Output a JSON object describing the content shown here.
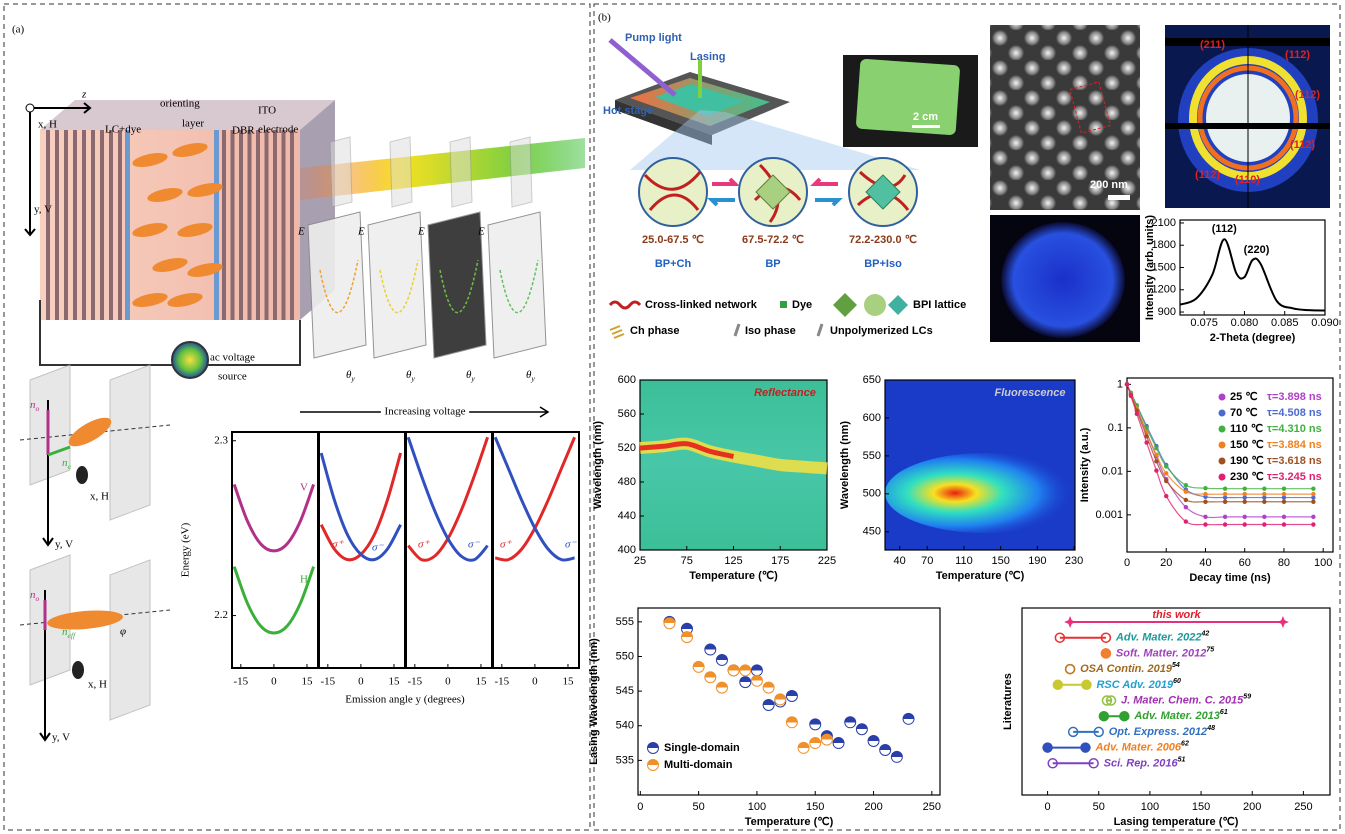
{
  "panel_labels": [
    "(a)",
    "(b)"
  ],
  "device": {
    "z": "z",
    "x": "x, H",
    "y": "y, V",
    "lc": "LC+dye",
    "orienting": [
      "orienting",
      "layer"
    ],
    "dbr": "DBR",
    "ito": [
      "ITO",
      "electrode"
    ],
    "source": [
      "ac voltage",
      "source"
    ],
    "field": "E",
    "angle": "θ",
    "angle_sub": "y"
  },
  "indicatrix": {
    "n": "n",
    "o": "o",
    "e": "e",
    "eff": "eff",
    "phi": "φ",
    "x": "x, H",
    "y": "y, V"
  },
  "schematic": {
    "pump": "Pump light",
    "lasing": "Lasing",
    "stage": "Hot stage",
    "scale_photo": "2 cm",
    "scale_sem": "200 nm",
    "phases": [
      {
        "range": "25.0-67.5 ℃",
        "name": "BP+Ch"
      },
      {
        "range": "67.5-72.2 ℃",
        "name": "BP"
      },
      {
        "range": "72.2-230.0 ℃",
        "name": "BP+Iso"
      }
    ],
    "legend": [
      "Cross-linked network",
      "Dye",
      "BPI lattice",
      "Ch phase",
      "Iso phase",
      "Unpolymerized LCs"
    ],
    "diffraction_labels": [
      "(211)",
      "(112)",
      "(112)",
      "(112)",
      "(112)",
      "(110)"
    ]
  },
  "chart_data": [
    {
      "type": "line",
      "title": "Increasing voltage",
      "xlabel": "Emission angle y (degrees)",
      "ylabel": "Energy (eV)",
      "x": [
        -18,
        -12,
        -6,
        0,
        6,
        12,
        18
      ],
      "xlim": [
        -19,
        20
      ],
      "xticks": [
        -15,
        0,
        15
      ],
      "ylim": [
        2.17,
        2.305
      ],
      "yticks": [
        2.2,
        2.3
      ],
      "panels": [
        {
          "series": [
            {
              "name": "V",
              "color": "#b0308a",
              "values": [
                2.275,
                2.254,
                2.241,
                2.237,
                2.241,
                2.254,
                2.275
              ]
            },
            {
              "name": "H",
              "color": "#3ab03a",
              "values": [
                2.228,
                2.207,
                2.194,
                2.19,
                2.194,
                2.207,
                2.228
              ]
            }
          ]
        },
        {
          "series": [
            {
              "name": "σ⁺",
              "color": "#e02828",
              "values": [
                2.252,
                2.238,
                2.232,
                2.235,
                2.246,
                2.266,
                2.293
              ]
            },
            {
              "name": "σ⁻",
              "color": "#3050c0",
              "values": [
                2.293,
                2.266,
                2.246,
                2.235,
                2.232,
                2.238,
                2.252
              ]
            }
          ]
        },
        {
          "series": [
            {
              "name": "σ⁺",
              "color": "#e02828",
              "values": [
                2.24,
                2.232,
                2.234,
                2.244,
                2.26,
                2.28,
                2.302
              ]
            },
            {
              "name": "σ⁻",
              "color": "#3050c0",
              "values": [
                2.302,
                2.28,
                2.26,
                2.244,
                2.234,
                2.232,
                2.24
              ]
            }
          ]
        },
        {
          "series": [
            {
              "name": "σ⁺",
              "color": "#e02828",
              "values": [
                2.233,
                2.232,
                2.238,
                2.25,
                2.266,
                2.284,
                2.302
              ]
            },
            {
              "name": "σ⁻",
              "color": "#3050c0",
              "values": [
                2.302,
                2.284,
                2.266,
                2.25,
                2.238,
                2.232,
                2.233
              ]
            }
          ]
        }
      ]
    },
    {
      "type": "line",
      "xlabel": "2-Theta (degree)",
      "ylabel": "Intensity (arb. units)",
      "annotations": [
        "(112)",
        "(220)"
      ],
      "x": [
        0.072,
        0.074,
        0.076,
        0.0775,
        0.079,
        0.08,
        0.081,
        0.082,
        0.084,
        0.086,
        0.088,
        0.09
      ],
      "values": [
        1000,
        1080,
        1400,
        1880,
        1420,
        1370,
        1600,
        1550,
        1050,
        950,
        925,
        920
      ],
      "color": "#000000",
      "xlim": [
        0.072,
        0.09
      ],
      "xticks": [
        0.075,
        {
          "value": 0.08,
          "label": "0.080"
        },
        0.085,
        {
          "value": 0.09,
          "label": "0.090"
        }
      ],
      "ylim": [
        860,
        2140
      ],
      "yticks": [
        900,
        1200,
        1500,
        1800,
        2100
      ]
    },
    {
      "type": "heatmap",
      "title": "Reflectance",
      "xlabel": "Temperature (℃)",
      "ylabel": "Wavelength (nm)",
      "x": [
        25,
        50,
        75,
        100,
        125,
        150,
        175,
        200,
        225
      ],
      "values": [
        520,
        522,
        525,
        516,
        510,
        505,
        500,
        498,
        496
      ],
      "xlim": [
        25,
        225
      ],
      "xticks": [
        25,
        75,
        125,
        175,
        225
      ],
      "ylim": [
        400,
        600
      ],
      "yticks": [
        400,
        440,
        480,
        520,
        560,
        600
      ]
    },
    {
      "type": "heatmap",
      "title": "Fluorescence",
      "xlabel": "Temperature (℃)",
      "ylabel": "Wavelength (nm)",
      "xlim": [
        24,
        231
      ],
      "xticks": [
        40,
        70,
        110,
        150,
        190,
        230
      ],
      "ylim": [
        426,
        650
      ],
      "yticks": [
        450,
        500,
        550,
        600,
        650
      ]
    },
    {
      "type": "scatter",
      "log": true,
      "xlabel": "Decay time (ns)",
      "ylabel": "Intensity (a.u.)",
      "x": [
        0,
        2,
        5,
        10,
        15,
        20,
        30,
        40,
        50,
        60,
        70,
        80,
        95
      ],
      "xlim": [
        0,
        105
      ],
      "xticks": [
        0,
        20,
        40,
        60,
        80,
        100
      ],
      "ylim": [
        0.00014,
        1.4
      ],
      "yticks": [
        0.001,
        0.01,
        0.1,
        1
      ],
      "series": [
        {
          "name": "25 ℃",
          "label": "τ=3.898 ns",
          "color": "#b040c8",
          "values": [
            1,
            0.6,
            0.28,
            0.078,
            0.022,
            0.0066,
            0.0015,
            0.0009,
            0.0009,
            0.0009,
            0.0009,
            0.0009,
            0.0009
          ]
        },
        {
          "name": "70 ℃",
          "label": "τ=4.508 ns",
          "color": "#4a6ad0",
          "values": [
            1,
            0.64,
            0.33,
            0.11,
            0.038,
            0.014,
            0.0038,
            0.0026,
            0.0025,
            0.0025,
            0.0025,
            0.0025,
            0.0025
          ]
        },
        {
          "name": "110 ℃",
          "label": "τ=4.310 ns",
          "color": "#40b040",
          "values": [
            1,
            0.63,
            0.32,
            0.1,
            0.034,
            0.013,
            0.0048,
            0.0041,
            0.004,
            0.004,
            0.004,
            0.004,
            0.004
          ]
        },
        {
          "name": "150 ℃",
          "label": "τ=3.884 ns",
          "color": "#f08020",
          "values": [
            1,
            0.6,
            0.28,
            0.079,
            0.024,
            0.009,
            0.0034,
            0.003,
            0.003,
            0.003,
            0.003,
            0.003,
            0.003
          ]
        },
        {
          "name": "190 ℃",
          "label": "τ=3.618 ns",
          "color": "#a05020",
          "values": [
            1,
            0.57,
            0.25,
            0.064,
            0.017,
            0.006,
            0.0022,
            0.002,
            0.002,
            0.002,
            0.002,
            0.002,
            0.002
          ]
        },
        {
          "name": "230 ℃",
          "label": "τ=3.245 ns",
          "color": "#e02070",
          "values": [
            1,
            0.54,
            0.21,
            0.046,
            0.0104,
            0.0027,
            0.0007,
            0.0006,
            0.0006,
            0.0006,
            0.0006,
            0.0006,
            0.0006
          ]
        }
      ]
    },
    {
      "type": "scatter",
      "xlabel": "Temperature (℃)",
      "ylabel": "Lasing Wavelength (nm)",
      "xlim": [
        -2,
        257
      ],
      "xticks": [
        0,
        50,
        100,
        150,
        200,
        250
      ],
      "ylim": [
        530,
        557
      ],
      "yticks": [
        535,
        540,
        545,
        550,
        555
      ],
      "series": [
        {
          "name": "Single-domain",
          "color": "#2a3fa8",
          "x": [
            25,
            40,
            60,
            70,
            80,
            90,
            100,
            110,
            120,
            130,
            150,
            160,
            170,
            180,
            190,
            200,
            210,
            220,
            230
          ],
          "values": [
            555,
            554,
            551,
            549.5,
            548,
            546.3,
            548,
            543,
            543.5,
            544.3,
            540.2,
            538.5,
            537.5,
            540.5,
            539.5,
            537.8,
            536.5,
            535.5,
            541
          ]
        },
        {
          "name": "Multi-domain",
          "color": "#f0902a",
          "x": [
            25,
            40,
            50,
            60,
            70,
            80,
            90,
            100,
            110,
            120,
            130,
            140,
            150,
            160
          ],
          "values": [
            554.8,
            552.8,
            548.5,
            547,
            545.5,
            548,
            548,
            546.5,
            545.5,
            543.8,
            540.5,
            536.8,
            537.5,
            538
          ]
        }
      ]
    },
    {
      "type": "range",
      "xlabel": "Lasing temperature (℃)",
      "ylabel": "Literatures",
      "xlim": [
        -25,
        276
      ],
      "xticks": [
        0,
        50,
        100,
        150,
        200,
        250
      ],
      "categories": [
        "this work",
        "Adv. Mater. 2022",
        "Soft. Matter. 2012",
        "OSA Contin. 2019",
        "RSC Adv. 2019",
        "J. Mater. Chem. C. 2015",
        "Adv. Mater. 2013",
        "Opt. Express. 2012",
        "Adv. Mater. 2006",
        "Sci. Rep. 2016"
      ],
      "refs": [
        null,
        "42",
        "75",
        "54",
        "60",
        "59",
        "61",
        "48",
        "62",
        "51"
      ],
      "starts": [
        22,
        12,
        57,
        22,
        10,
        58,
        55,
        25,
        0,
        5
      ],
      "ends": [
        230,
        57,
        57,
        22,
        38,
        62,
        75,
        50,
        37,
        45
      ],
      "colors": [
        "#e8307a",
        "#e83030",
        "#f08030",
        "#c07a20",
        "#c8c830",
        "#90c040",
        "#30a030",
        "#3070c0",
        "#3050c0",
        "#8040c0"
      ],
      "label_colors": [
        "#e02030",
        "#1a9a9a",
        "#a040c0",
        "#a06a20",
        "#20a0d0",
        "#a030b0",
        "#30a030",
        "#3070c0",
        "#f08020",
        "#8040c0"
      ]
    }
  ]
}
